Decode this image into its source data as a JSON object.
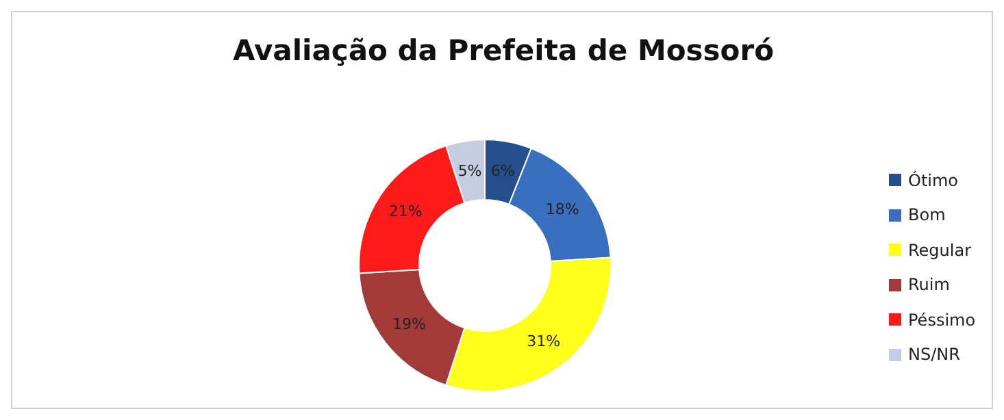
{
  "chart_data": {
    "type": "donut",
    "title": "Avaliação da Prefeita de Mossoró",
    "categories": [
      "Ótimo",
      "Bom",
      "Regular",
      "Ruim",
      "Péssimo",
      "NS/NR"
    ],
    "values": [
      6,
      18,
      31,
      19,
      21,
      5
    ],
    "colors": [
      "#254f8c",
      "#3a6fbf",
      "#ffff1a",
      "#a33a3a",
      "#ff1a1a",
      "#c5cde3"
    ],
    "value_labels": [
      "6%",
      "18%",
      "31%",
      "19%",
      "21%",
      "5%"
    ],
    "legend": "right"
  }
}
